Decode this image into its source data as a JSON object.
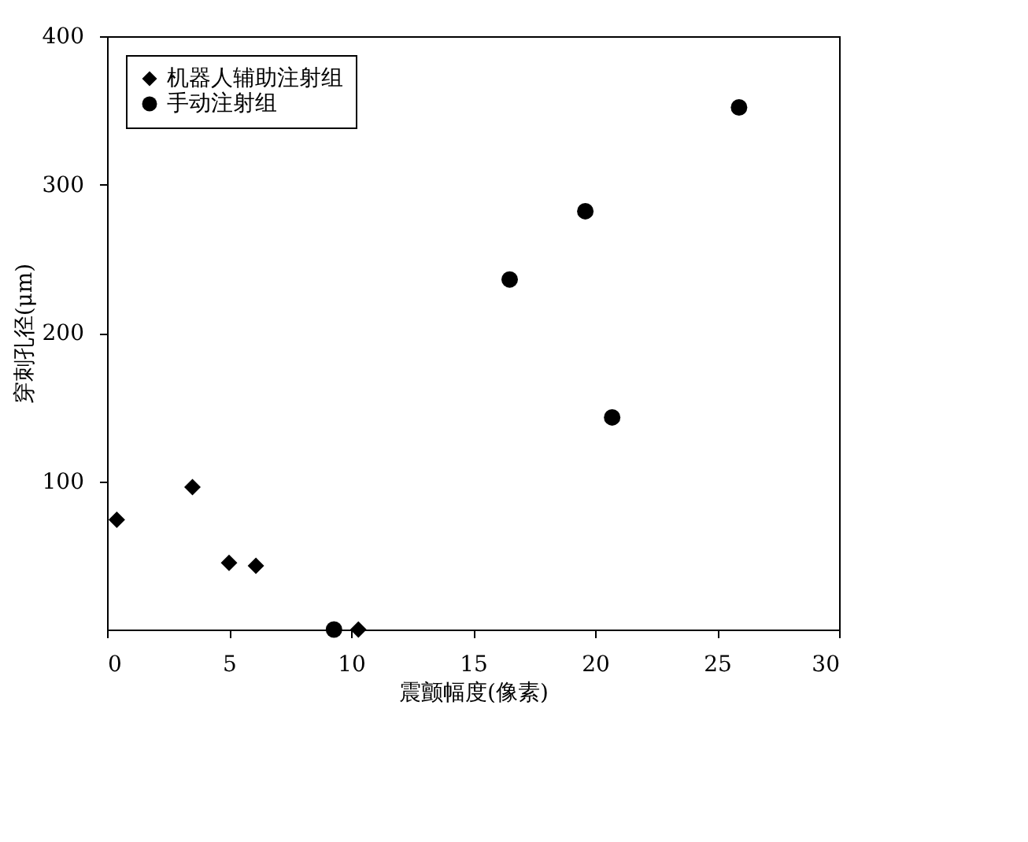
{
  "chart_data": {
    "type": "scatter",
    "xlabel": "震颤幅度(像素)",
    "ylabel": "穿刺孔径(μm)",
    "xlim": [
      0,
      30
    ],
    "xticks": [
      0,
      5,
      10,
      15,
      20,
      25,
      30
    ],
    "ylim": [
      0,
      400
    ],
    "yticks": [
      100,
      200,
      300,
      400
    ],
    "legend": "top left",
    "series": [
      {
        "name": "机器人辅助注射组",
        "color": "#000000",
        "marker": "diamond",
        "x": [
          0.4,
          3.5,
          5.0,
          6.1,
          10.3
        ],
        "values": [
          74,
          96,
          45,
          43,
          0
        ]
      },
      {
        "name": "手动注射组",
        "color": "#000000",
        "marker": "circle",
        "x": [
          9.3,
          16.5,
          19.6,
          20.7,
          25.9
        ],
        "values": [
          0,
          236,
          282,
          143,
          352
        ]
      }
    ]
  }
}
